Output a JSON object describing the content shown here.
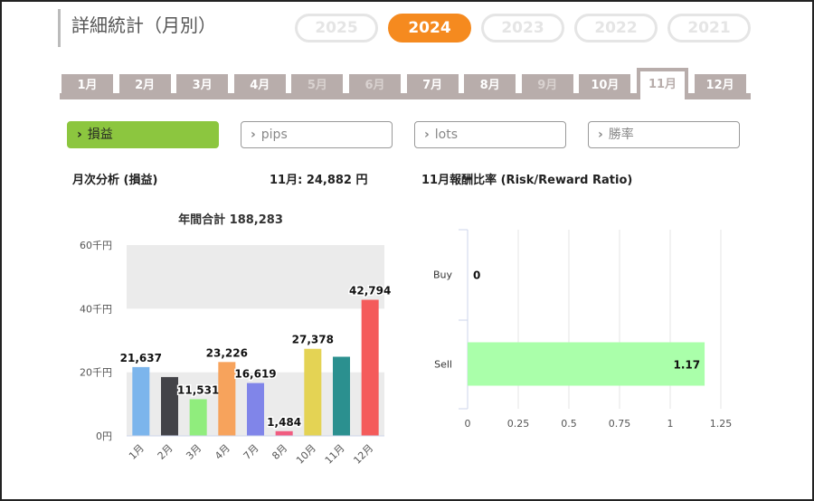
{
  "header": {
    "title": "詳細統計（月別）"
  },
  "years": [
    {
      "label": "2025",
      "active": false
    },
    {
      "label": "2024",
      "active": true
    },
    {
      "label": "2023",
      "active": false
    },
    {
      "label": "2022",
      "active": false
    },
    {
      "label": "2021",
      "active": false
    }
  ],
  "months": [
    {
      "label": "1月",
      "state": "normal"
    },
    {
      "label": "2月",
      "state": "normal"
    },
    {
      "label": "3月",
      "state": "normal"
    },
    {
      "label": "4月",
      "state": "normal"
    },
    {
      "label": "5月",
      "state": "dim"
    },
    {
      "label": "6月",
      "state": "dim"
    },
    {
      "label": "7月",
      "state": "normal"
    },
    {
      "label": "8月",
      "state": "normal"
    },
    {
      "label": "9月",
      "state": "dim"
    },
    {
      "label": "10月",
      "state": "normal"
    },
    {
      "label": "11月",
      "state": "active"
    },
    {
      "label": "12月",
      "state": "normal"
    }
  ],
  "filters": [
    {
      "label": "損益",
      "active": true
    },
    {
      "label": "pips",
      "active": false
    },
    {
      "label": "lots",
      "active": false
    },
    {
      "label": "勝率",
      "active": false
    }
  ],
  "summary": {
    "section_title": "月次分析 (損益)",
    "month_value": "11月:  24,882 円",
    "ratio_title": "11月報酬比率 (Risk/Reward Ratio)"
  },
  "chart_data": [
    {
      "type": "bar",
      "title": "年間合計 188,283",
      "categories": [
        "1月",
        "2月",
        "3月",
        "4月",
        "7月",
        "8月",
        "10月",
        "11月",
        "12月"
      ],
      "values": [
        21637,
        18500,
        11531,
        23226,
        16619,
        1484,
        27378,
        24882,
        42794
      ],
      "data_labels": [
        "21,637",
        "",
        "11,531",
        "23,226",
        "16,619",
        "1,484",
        "27,378",
        "",
        "42,794"
      ],
      "colors": [
        "#7cb5ec",
        "#434348",
        "#90ed7d",
        "#f7a35c",
        "#8085e9",
        "#f15c80",
        "#e4d354",
        "#2b908f",
        "#f45b5b"
      ],
      "ylim": [
        0,
        60000
      ],
      "yticks": [
        0,
        20000,
        40000,
        60000
      ],
      "ytick_labels": [
        "0円",
        "20千円",
        "40千円",
        "60千円"
      ],
      "band_color": "#ebebeb",
      "grid": false
    },
    {
      "type": "bar",
      "orientation": "horizontal",
      "categories": [
        "Buy",
        "Sell"
      ],
      "values": [
        0,
        1.17
      ],
      "data_labels": [
        "0",
        "1.17"
      ],
      "color": "#aaffaa",
      "xlim": [
        0,
        1.25
      ],
      "xticks": [
        0,
        0.25,
        0.5,
        0.75,
        1,
        1.25
      ],
      "xtick_labels": [
        "0",
        "0.25",
        "0.5",
        "0.75",
        "1",
        "1.25"
      ],
      "grid": true
    }
  ]
}
